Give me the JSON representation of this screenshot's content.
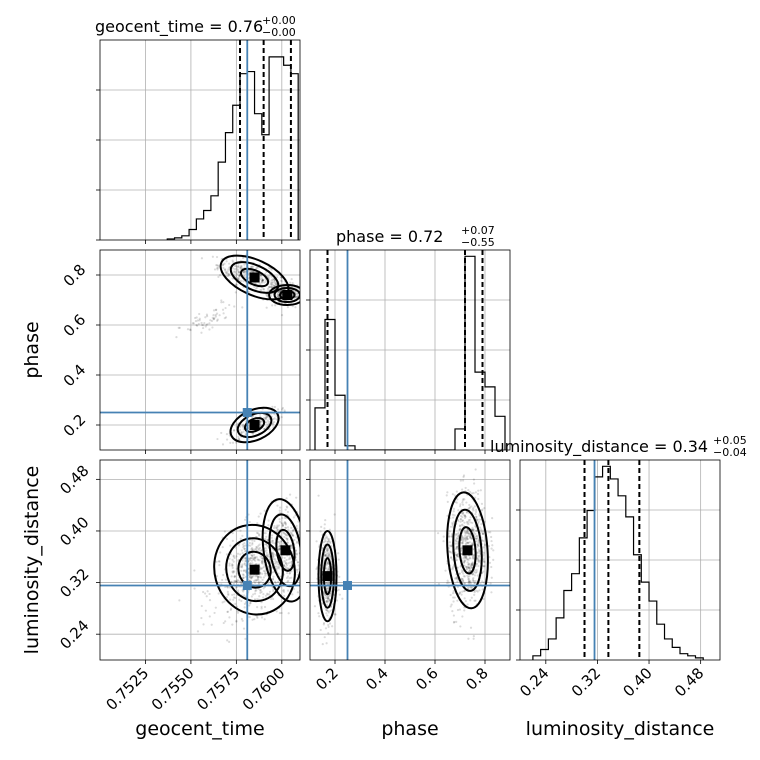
{
  "chart_data": {
    "type": "corner",
    "parameters": [
      "geocent_time",
      "phase",
      "luminosity_distance"
    ],
    "truths": {
      "geocent_time": 0.7581,
      "phase": 0.25,
      "luminosity_distance": 0.3155
    },
    "ranges": {
      "geocent_time": [
        0.75,
        0.761
      ],
      "phase": [
        0.1,
        0.9
      ],
      "luminosity_distance": [
        0.2,
        0.51
      ]
    },
    "ticks": {
      "geocent_time": [
        0.7525,
        0.755,
        0.7575,
        0.76
      ],
      "phase": [
        0.2,
        0.4,
        0.6,
        0.8
      ],
      "luminosity_distance": [
        0.24,
        0.32,
        0.4,
        0.48
      ]
    },
    "tick_labels": {
      "geocent_time": [
        "0.7525",
        "0.7550",
        "0.7575",
        "0.7600"
      ],
      "phase": [
        "0.2",
        "0.4",
        "0.6",
        "0.8"
      ],
      "luminosity_distance": [
        "0.24",
        "0.32",
        "0.40",
        "0.48"
      ]
    },
    "titles": {
      "geocent_time": {
        "name": "geocent_time",
        "value": "0.76",
        "plus": "+0.00",
        "minus": "−0.00"
      },
      "phase": {
        "name": "phase",
        "value": "0.72",
        "plus": "+0.07",
        "minus": "−0.55"
      },
      "luminosity_distance": {
        "name": "luminosity_distance",
        "value": "0.34",
        "plus": "+0.05",
        "minus": "−0.04"
      }
    },
    "quantiles": {
      "geocent_time": [
        0.7577,
        0.759,
        0.7605
      ],
      "phase": [
        0.17,
        0.72,
        0.79
      ],
      "luminosity_distance": [
        0.3,
        0.337,
        0.385
      ]
    },
    "histograms": {
      "geocent_time": {
        "edges": [
          0.7537,
          0.7541,
          0.7545,
          0.7549,
          0.7553,
          0.7557,
          0.7561,
          0.7565,
          0.7569,
          0.7573,
          0.7577,
          0.7581,
          0.7585,
          0.7589,
          0.7593,
          0.7597,
          0.7601,
          0.7605,
          0.7609
        ],
        "counts": [
          0.005,
          0.01,
          0.02,
          0.05,
          0.1,
          0.14,
          0.21,
          0.37,
          0.51,
          0.64,
          0.79,
          0.8,
          0.6,
          0.5,
          0.87,
          0.87,
          0.83,
          0.79
        ]
      },
      "phase": {
        "edges": [
          0.12,
          0.16,
          0.2,
          0.24,
          0.28,
          0.32,
          0.36,
          0.4,
          0.44,
          0.48,
          0.52,
          0.56,
          0.6,
          0.64,
          0.68,
          0.72,
          0.76,
          0.8,
          0.84,
          0.88
        ],
        "counts": [
          0.2,
          0.62,
          0.26,
          0.02,
          0,
          0,
          0,
          0,
          0,
          0,
          0,
          0,
          0,
          0,
          0.1,
          0.92,
          0.37,
          0.3,
          0.16
        ]
      },
      "luminosity_distance": {
        "edges": [
          0.22,
          0.232,
          0.244,
          0.256,
          0.268,
          0.28,
          0.292,
          0.304,
          0.316,
          0.328,
          0.34,
          0.352,
          0.364,
          0.376,
          0.388,
          0.4,
          0.412,
          0.424,
          0.436,
          0.448,
          0.46,
          0.472,
          0.484
        ],
        "counts": [
          0.02,
          0.05,
          0.1,
          0.2,
          0.33,
          0.41,
          0.58,
          0.71,
          0.87,
          0.92,
          0.86,
          0.78,
          0.68,
          0.5,
          0.37,
          0.28,
          0.17,
          0.1,
          0.06,
          0.03,
          0.02,
          0.01
        ]
      }
    },
    "grid": true
  }
}
